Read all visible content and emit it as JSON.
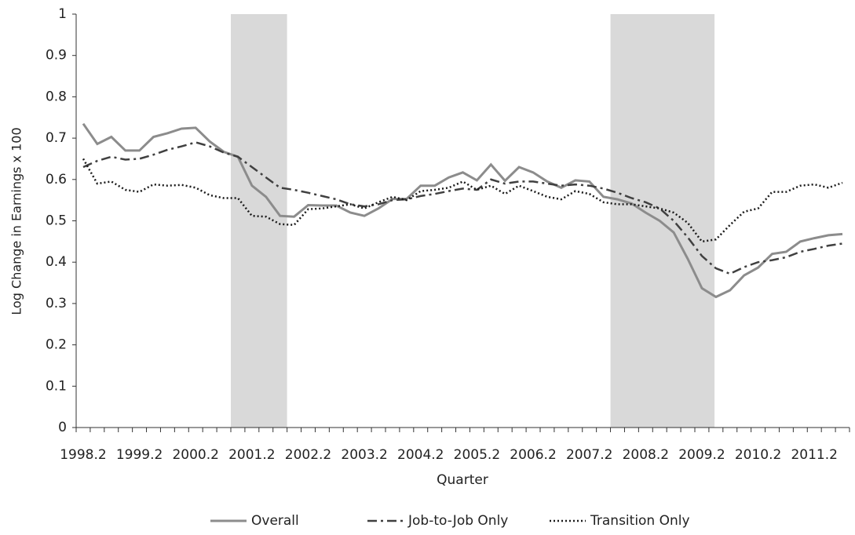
{
  "chart_data": {
    "type": "line",
    "x_label": "Quarter",
    "y_label": "Log Change in Earnings x 100",
    "categories": [
      "1998.2",
      null,
      null,
      null,
      "1999.2",
      null,
      null,
      null,
      "2000.2",
      null,
      null,
      null,
      "2001.2",
      null,
      null,
      null,
      "2002.2",
      null,
      null,
      null,
      "2003.2",
      null,
      null,
      null,
      "2004.2",
      null,
      null,
      null,
      "2005.2",
      null,
      null,
      null,
      "2006.2",
      null,
      null,
      null,
      "2007.2",
      null,
      null,
      null,
      "2008.2",
      null,
      null,
      null,
      "2009.2",
      null,
      null,
      null,
      "2010.2",
      null,
      null,
      null,
      "2011.2",
      null,
      null
    ],
    "series": [
      {
        "name": "Overall",
        "color": "#8c8c8c",
        "style": "solid",
        "values": [
          0.735,
          0.686,
          0.703,
          0.67,
          0.67,
          0.703,
          0.712,
          0.723,
          0.725,
          0.692,
          0.667,
          0.655,
          0.585,
          0.558,
          0.512,
          0.51,
          0.538,
          0.537,
          0.537,
          0.52,
          0.512,
          0.53,
          0.553,
          0.553,
          0.585,
          0.585,
          0.605,
          0.617,
          0.598,
          0.636,
          0.597,
          0.63,
          0.617,
          0.595,
          0.58,
          0.598,
          0.595,
          0.558,
          0.552,
          0.542,
          0.52,
          0.5,
          0.472,
          0.408,
          0.337,
          0.316,
          0.332,
          0.368,
          0.387,
          0.42,
          0.425,
          0.45,
          0.458,
          0.465,
          0.468
        ]
      },
      {
        "name": "Job-to-Job Only",
        "color": "#404040",
        "style": "dashdot",
        "values": [
          0.63,
          0.645,
          0.655,
          0.648,
          0.65,
          0.66,
          0.672,
          0.68,
          0.69,
          0.68,
          0.665,
          0.655,
          0.63,
          0.605,
          0.58,
          0.575,
          0.568,
          0.56,
          0.552,
          0.54,
          0.535,
          0.54,
          0.55,
          0.552,
          0.56,
          0.565,
          0.572,
          0.578,
          0.575,
          0.6,
          0.59,
          0.595,
          0.595,
          0.59,
          0.585,
          0.588,
          0.585,
          0.578,
          0.568,
          0.555,
          0.545,
          0.53,
          0.5,
          0.46,
          0.415,
          0.385,
          0.372,
          0.388,
          0.4,
          0.405,
          0.412,
          0.425,
          0.432,
          0.44,
          0.445
        ]
      },
      {
        "name": "Transition Only",
        "color": "#1a1a1a",
        "style": "dotted",
        "values": [
          0.65,
          0.59,
          0.595,
          0.575,
          0.57,
          0.588,
          0.585,
          0.587,
          0.58,
          0.562,
          0.555,
          0.555,
          0.512,
          0.51,
          0.492,
          0.49,
          0.528,
          0.53,
          0.535,
          0.54,
          0.53,
          0.545,
          0.558,
          0.55,
          0.572,
          0.575,
          0.58,
          0.595,
          0.575,
          0.585,
          0.565,
          0.585,
          0.572,
          0.558,
          0.552,
          0.572,
          0.565,
          0.545,
          0.54,
          0.54,
          0.535,
          0.53,
          0.52,
          0.495,
          0.45,
          0.455,
          0.49,
          0.522,
          0.53,
          0.57,
          0.57,
          0.585,
          0.588,
          0.58,
          0.592
        ]
      }
    ],
    "ylim": [
      0,
      1
    ],
    "yticks": [
      0,
      0.1,
      0.2,
      0.3,
      0.4,
      0.5,
      0.6,
      0.7,
      0.8,
      0.9,
      1
    ],
    "grid": false,
    "legend": "bottom"
  }
}
